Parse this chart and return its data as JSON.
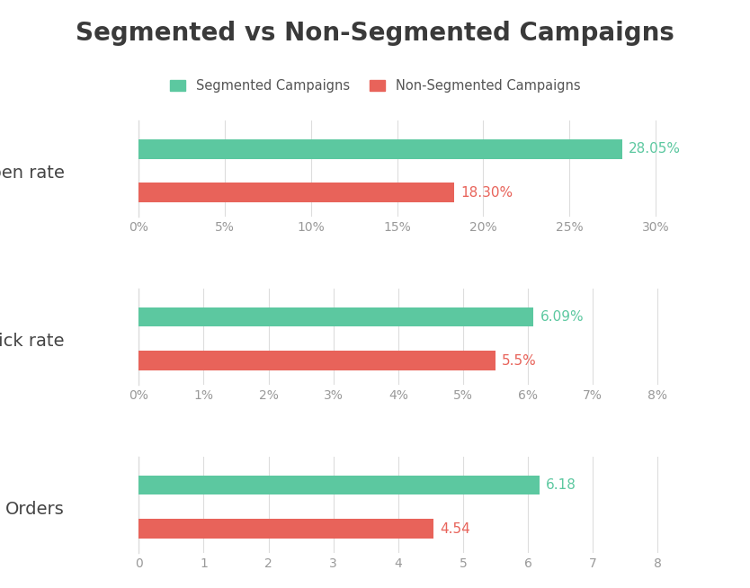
{
  "title": "Segmented vs Non-Segmented Campaigns",
  "title_fontsize": 20,
  "title_color": "#3a3a3a",
  "background_color": "#ffffff",
  "green_color": "#5cc8a0",
  "red_color": "#e8635a",
  "label_color_green": "#5cc8a0",
  "label_color_red": "#e8635a",
  "grid_color": "#dddddd",
  "axis_label_color": "#999999",
  "category_label_color": "#444444",
  "legend_label_color": "#555555",
  "charts": [
    {
      "category": "Open rate",
      "segmented_value": 28.05,
      "non_segmented_value": 18.3,
      "segmented_label": "28.05%",
      "non_segmented_label": "18.30%",
      "x_ticks": [
        0,
        5,
        10,
        15,
        20,
        25,
        30
      ],
      "x_tick_labels": [
        "0%",
        "5%",
        "10%",
        "15%",
        "20%",
        "25%",
        "30%"
      ],
      "xlim": [
        0,
        32
      ]
    },
    {
      "category": "Click rate",
      "segmented_value": 6.09,
      "non_segmented_value": 5.5,
      "segmented_label": "6.09%",
      "non_segmented_label": "5.5%",
      "x_ticks": [
        0,
        1,
        2,
        3,
        4,
        5,
        6,
        7,
        8
      ],
      "x_tick_labels": [
        "0%",
        "1%",
        "2%",
        "3%",
        "4%",
        "5%",
        "6%",
        "7%",
        "8%"
      ],
      "xlim": [
        0,
        8.5
      ]
    },
    {
      "category": "Orders",
      "segmented_value": 6.18,
      "non_segmented_value": 4.54,
      "segmented_label": "6.18",
      "non_segmented_label": "4.54",
      "x_ticks": [
        0,
        1,
        2,
        3,
        4,
        5,
        6,
        7,
        8
      ],
      "x_tick_labels": [
        "0",
        "1",
        "2",
        "3",
        "4",
        "5",
        "6",
        "7",
        "8"
      ],
      "xlim": [
        0,
        8.5
      ]
    }
  ],
  "legend_entries": [
    {
      "label": "Segmented Campaigns",
      "color": "#5cc8a0"
    },
    {
      "label": "Non-Segmented Campaigns",
      "color": "#e8635a"
    }
  ],
  "bar_height": 0.45,
  "category_fontsize": 14,
  "tick_fontsize": 10,
  "label_fontsize": 11
}
